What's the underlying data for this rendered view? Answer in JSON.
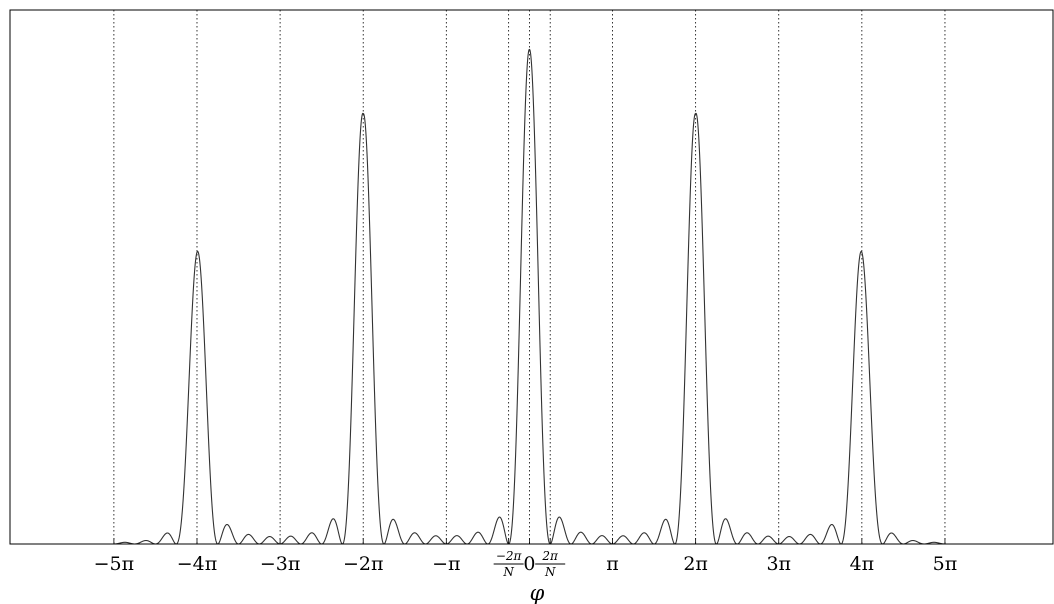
{
  "chart_data": {
    "type": "line",
    "title": "",
    "xlabel": "φ",
    "ylabel": "",
    "xlim_in_pi": [
      -6.25,
      6.3
    ],
    "ylim": [
      0,
      1.08
    ],
    "grid": "vertical dotted lines at x ticks",
    "x_ticks": [
      {
        "value_in_pi": -5,
        "label": "−5π"
      },
      {
        "value_in_pi": -4,
        "label": "−4π"
      },
      {
        "value_in_pi": -3,
        "label": "−3π"
      },
      {
        "value_in_pi": -2,
        "label": "−2π"
      },
      {
        "value_in_pi": -1,
        "label": "−π"
      },
      {
        "value_in_pi": -0.25,
        "label_num": "−2π",
        "label_den": "N"
      },
      {
        "value_in_pi": 0,
        "label": "0"
      },
      {
        "value_in_pi": 0.25,
        "label_num": "2π",
        "label_den": "N"
      },
      {
        "value_in_pi": 1,
        "label": "π"
      },
      {
        "value_in_pi": 2,
        "label": "2π"
      },
      {
        "value_in_pi": 3,
        "label": "3π"
      },
      {
        "value_in_pi": 4,
        "label": "4π"
      },
      {
        "value_in_pi": 5,
        "label": "5π"
      }
    ],
    "series": [
      {
        "description_of_shape": "sinc-like pattern: N-slit intensity with single-slit envelope",
        "N": 8,
        "main_peaks": [
          {
            "x_in_pi": -4,
            "y": 0.59
          },
          {
            "x_in_pi": -2,
            "y": 0.87
          },
          {
            "x_in_pi": 0,
            "y": 1.0
          },
          {
            "x_in_pi": 2,
            "y": 0.87
          },
          {
            "x_in_pi": 4,
            "y": 0.59
          }
        ],
        "x_range_in_pi": [
          -5,
          5
        ]
      }
    ],
    "color": "#333333"
  }
}
